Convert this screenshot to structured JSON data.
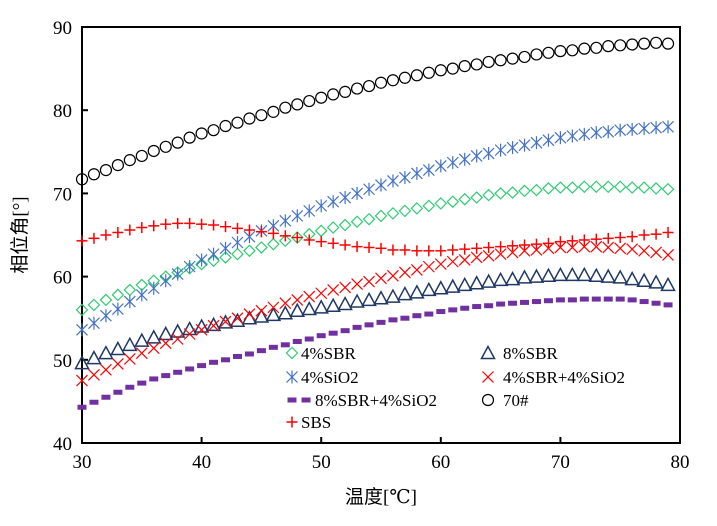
{
  "chart_data": {
    "type": "scatter",
    "title": "",
    "xlabel": "温度[℃]",
    "ylabel": "相位角[°]",
    "xlim": [
      30,
      80
    ],
    "ylim": [
      40,
      90
    ],
    "xticks": [
      "30",
      "40",
      "50",
      "60",
      "70",
      "80"
    ],
    "yticks": [
      "40",
      "50",
      "60",
      "70",
      "80",
      "90"
    ],
    "grid": false,
    "legend_position": "bottom-center inside",
    "x": [
      30,
      31,
      32,
      33,
      34,
      35,
      36,
      37,
      38,
      39,
      40,
      41,
      42,
      43,
      44,
      45,
      46,
      47,
      48,
      49,
      50,
      51,
      52,
      53,
      54,
      55,
      56,
      57,
      58,
      59,
      60,
      61,
      62,
      63,
      64,
      65,
      66,
      67,
      68,
      69,
      70,
      71,
      72,
      73,
      74,
      75,
      76,
      77,
      78,
      79
    ],
    "series": [
      {
        "name": "4%SBR",
        "marker": "diamond",
        "color": "#2ecc71",
        "values": [
          56.0,
          56.6,
          57.2,
          57.8,
          58.4,
          59.0,
          59.5,
          60.0,
          60.5,
          61.0,
          61.5,
          61.9,
          62.3,
          62.7,
          63.1,
          63.5,
          63.9,
          64.3,
          64.7,
          65.1,
          65.5,
          65.9,
          66.2,
          66.6,
          66.9,
          67.3,
          67.6,
          67.9,
          68.2,
          68.5,
          68.8,
          69.0,
          69.3,
          69.5,
          69.8,
          70.0,
          70.1,
          70.3,
          70.4,
          70.6,
          70.7,
          70.7,
          70.8,
          70.8,
          70.8,
          70.8,
          70.7,
          70.7,
          70.6,
          70.5
        ]
      },
      {
        "name": "8%SBR",
        "marker": "triangle",
        "color": "#1f3864",
        "values": [
          49.6,
          50.2,
          50.8,
          51.3,
          51.8,
          52.3,
          52.7,
          53.1,
          53.4,
          53.7,
          54.0,
          54.2,
          54.5,
          54.7,
          55.0,
          55.2,
          55.4,
          55.6,
          55.9,
          56.1,
          56.3,
          56.5,
          56.7,
          57.0,
          57.2,
          57.4,
          57.6,
          57.9,
          58.1,
          58.4,
          58.6,
          58.8,
          59.0,
          59.2,
          59.4,
          59.6,
          59.7,
          59.9,
          60.0,
          60.1,
          60.2,
          60.2,
          60.2,
          60.1,
          60.0,
          59.9,
          59.7,
          59.5,
          59.3,
          59.0
        ]
      },
      {
        "name": "4%SiO2",
        "marker": "asterisk",
        "color": "#4472c4",
        "values": [
          53.6,
          54.4,
          55.3,
          56.1,
          57.0,
          57.8,
          58.6,
          59.5,
          60.3,
          61.2,
          62.0,
          62.7,
          63.4,
          64.1,
          64.8,
          65.5,
          66.1,
          66.7,
          67.3,
          67.9,
          68.5,
          69.0,
          69.5,
          70.0,
          70.5,
          71.0,
          71.5,
          71.9,
          72.4,
          72.8,
          73.3,
          73.7,
          74.1,
          74.5,
          74.8,
          75.2,
          75.5,
          75.8,
          76.1,
          76.4,
          76.7,
          76.9,
          77.1,
          77.3,
          77.4,
          77.6,
          77.7,
          77.8,
          77.9,
          78.0
        ]
      },
      {
        "name": "4%SBR+4%SiO2",
        "marker": "x",
        "color": "#ff0000",
        "values": [
          47.5,
          48.2,
          48.8,
          49.5,
          50.1,
          50.8,
          51.4,
          52.0,
          52.5,
          53.1,
          53.6,
          54.1,
          54.6,
          55.0,
          55.5,
          55.9,
          56.3,
          56.8,
          57.2,
          57.6,
          58.0,
          58.4,
          58.7,
          59.1,
          59.4,
          59.8,
          60.1,
          60.5,
          60.8,
          61.2,
          61.5,
          61.8,
          62.0,
          62.3,
          62.5,
          62.7,
          62.9,
          63.1,
          63.2,
          63.4,
          63.5,
          63.5,
          63.6,
          63.6,
          63.5,
          63.4,
          63.3,
          63.1,
          62.9,
          62.6
        ]
      },
      {
        "name": "8%SBR+4%SiO2",
        "marker": "dash",
        "color": "#7030a0",
        "values": [
          44.3,
          44.9,
          45.5,
          46.1,
          46.7,
          47.2,
          47.7,
          48.1,
          48.5,
          48.9,
          49.3,
          49.7,
          50.0,
          50.4,
          50.7,
          51.1,
          51.5,
          51.8,
          52.2,
          52.5,
          52.9,
          53.2,
          53.5,
          53.9,
          54.2,
          54.5,
          54.8,
          55.0,
          55.3,
          55.5,
          55.8,
          56.0,
          56.2,
          56.4,
          56.5,
          56.7,
          56.8,
          56.9,
          57.0,
          57.1,
          57.2,
          57.2,
          57.3,
          57.3,
          57.3,
          57.3,
          57.2,
          57.0,
          56.8,
          56.6
        ]
      },
      {
        "name": "70#",
        "marker": "circle",
        "color": "#000000",
        "values": [
          71.7,
          72.3,
          72.8,
          73.4,
          74.0,
          74.5,
          75.1,
          75.6,
          76.1,
          76.7,
          77.2,
          77.6,
          78.1,
          78.5,
          79.0,
          79.4,
          79.8,
          80.3,
          80.7,
          81.1,
          81.5,
          81.9,
          82.2,
          82.6,
          82.9,
          83.3,
          83.6,
          83.9,
          84.2,
          84.5,
          84.8,
          85.0,
          85.3,
          85.5,
          85.8,
          86.0,
          86.2,
          86.4,
          86.7,
          86.9,
          87.1,
          87.2,
          87.4,
          87.5,
          87.7,
          87.8,
          87.9,
          88.0,
          88.1,
          88.0
        ]
      },
      {
        "name": "SBS",
        "marker": "plus",
        "color": "#ff0000",
        "values": [
          64.3,
          64.6,
          65.0,
          65.3,
          65.6,
          65.9,
          66.1,
          66.3,
          66.4,
          66.4,
          66.3,
          66.2,
          66.0,
          65.8,
          65.6,
          65.4,
          65.2,
          64.9,
          64.7,
          64.4,
          64.2,
          64.0,
          63.8,
          63.6,
          63.5,
          63.4,
          63.2,
          63.2,
          63.1,
          63.1,
          63.1,
          63.2,
          63.3,
          63.4,
          63.5,
          63.6,
          63.7,
          63.8,
          63.9,
          64.0,
          64.2,
          64.3,
          64.4,
          64.5,
          64.6,
          64.7,
          64.8,
          65.0,
          65.1,
          65.3
        ]
      }
    ]
  }
}
